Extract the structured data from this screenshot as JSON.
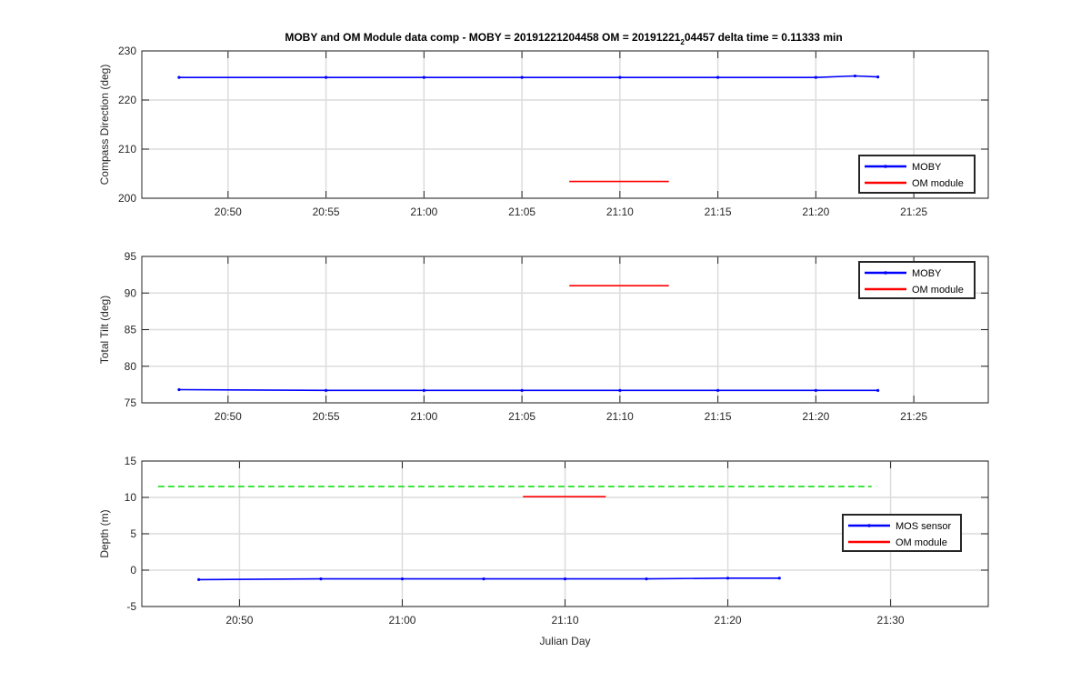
{
  "chart_data": [
    {
      "type": "line",
      "title": "MOBY and OM Module data comp - MOBY = 20191221204458 OM = 20191221",
      "title_subscript": "2",
      "title_tail": "04457 delta time = 0.11333 min",
      "xlabel": "",
      "ylabel": "Compass Direction (deg)",
      "ylim": [
        200,
        230
      ],
      "yticks": [
        200,
        210,
        220,
        230
      ],
      "xlim": [
        "20:45:36",
        "21:28:48"
      ],
      "xticks": [
        "20:50",
        "20:55",
        "21:00",
        "21:05",
        "21:10",
        "21:15",
        "21:20",
        "21:25"
      ],
      "grid": true,
      "legend_position": "bottom-right",
      "series": [
        {
          "name": "MOBY",
          "color": "#0000ff",
          "style": "solid-with-dots",
          "x": [
            "20:47:30",
            "20:55:00",
            "21:00:00",
            "21:05:00",
            "21:10:00",
            "21:15:00",
            "21:20:00",
            "21:22:00",
            "21:23:10"
          ],
          "y": [
            224.6,
            224.6,
            224.6,
            224.6,
            224.6,
            224.6,
            224.6,
            224.9,
            224.7
          ]
        },
        {
          "name": "OM module",
          "color": "#ff0000",
          "style": "solid",
          "x": [
            "21:07:25",
            "21:12:30"
          ],
          "y": [
            203.4,
            203.4
          ]
        }
      ]
    },
    {
      "type": "line",
      "title": "",
      "xlabel": "",
      "ylabel": "Total Tilt (deg)",
      "ylim": [
        75,
        95
      ],
      "yticks": [
        75,
        80,
        85,
        90,
        95
      ],
      "xlim": [
        "20:45:36",
        "21:28:48"
      ],
      "xticks": [
        "20:50",
        "20:55",
        "21:00",
        "21:05",
        "21:10",
        "21:15",
        "21:20",
        "21:25"
      ],
      "grid": true,
      "legend_position": "top-right",
      "series": [
        {
          "name": "MOBY",
          "color": "#0000ff",
          "style": "solid-with-dots",
          "x": [
            "20:47:30",
            "20:55:00",
            "21:00:00",
            "21:05:00",
            "21:10:00",
            "21:15:00",
            "21:20:00",
            "21:23:10"
          ],
          "y": [
            76.8,
            76.7,
            76.7,
            76.7,
            76.7,
            76.7,
            76.7,
            76.7
          ]
        },
        {
          "name": "OM module",
          "color": "#ff0000",
          "style": "solid",
          "x": [
            "21:07:25",
            "21:12:30"
          ],
          "y": [
            91.0,
            91.0
          ]
        }
      ]
    },
    {
      "type": "line",
      "title": "",
      "xlabel": "Julian Day",
      "ylabel": "Depth (m)",
      "ylim": [
        -5,
        15
      ],
      "yticks": [
        -5,
        0,
        5,
        10,
        15
      ],
      "xlim": [
        "20:44:00",
        "21:36:00"
      ],
      "xticks": [
        "20:50",
        "21:00",
        "21:10",
        "21:20",
        "21:30"
      ],
      "grid": true,
      "legend_position": "right",
      "series": [
        {
          "name": "MOS sensor",
          "color": "#0000ff",
          "style": "solid-with-dots",
          "x": [
            "20:47:30",
            "20:55:00",
            "21:00:00",
            "21:05:00",
            "21:10:00",
            "21:15:00",
            "21:20:00",
            "21:23:10"
          ],
          "y": [
            -1.3,
            -1.2,
            -1.2,
            -1.2,
            -1.2,
            -1.2,
            -1.1,
            -1.1
          ]
        },
        {
          "name": "OM module",
          "color": "#ff0000",
          "style": "solid",
          "x": [
            "21:07:25",
            "21:12:30"
          ],
          "y": [
            10.1,
            10.1
          ]
        },
        {
          "color": "#00dd00",
          "style": "dashed",
          "x": [
            "20:45:00",
            "21:28:50"
          ],
          "y": [
            11.5,
            11.5
          ]
        }
      ]
    }
  ]
}
